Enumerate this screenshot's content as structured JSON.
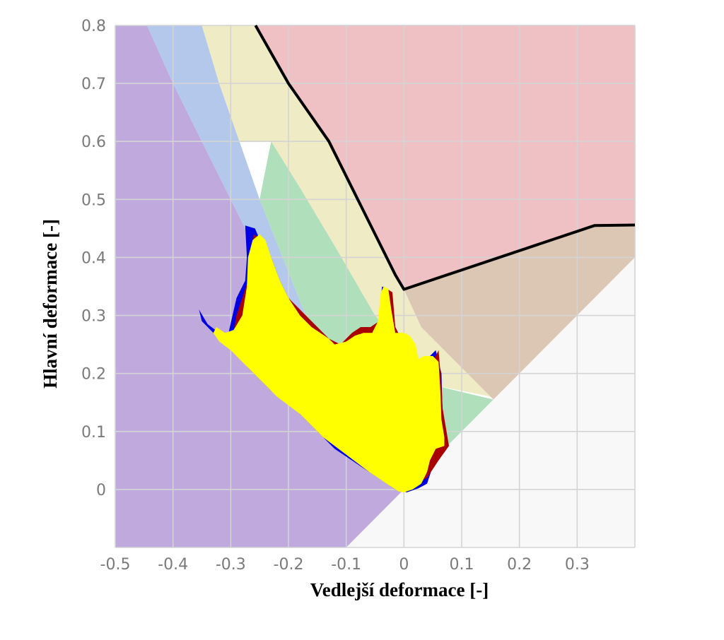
{
  "chart_data": {
    "type": "area",
    "title": "",
    "xlabel": "Vedlejší deformace [-]",
    "ylabel": "Hlavní deformace [-]",
    "xlim": [
      -0.5,
      0.4
    ],
    "ylim": [
      -0.1,
      0.8
    ],
    "x_ticks": [
      "-0.5",
      "-0.4",
      "-0.3",
      "-0.2",
      "-0.1",
      "0",
      "0.1",
      "0.2",
      "0.3"
    ],
    "y_ticks": [
      "0",
      "0.1",
      "0.2",
      "0.3",
      "0.4",
      "0.5",
      "0.6",
      "0.7",
      "0.8"
    ],
    "grid": true,
    "colors": {
      "purple": "#bfa9dd",
      "blue": "#b3c8ea",
      "cream": "#efebc4",
      "green": "#b0dfbb",
      "pink": "#efc1c4",
      "tan": "#dcc6b4",
      "white": "#f9f8f8",
      "limit_curve": "#000000",
      "strain_blue": "#0000e0",
      "strain_red": "#a80000",
      "strain_yellow": "#ffff00"
    },
    "regions": [
      {
        "name": "purple",
        "points": [
          [
            -0.5,
            -0.1
          ],
          [
            -0.5,
            0.8
          ],
          [
            -0.445,
            0.8
          ],
          [
            -0.4,
            0.7
          ],
          [
            -0.35,
            0.6
          ],
          [
            -0.3,
            0.5
          ],
          [
            -0.25,
            0.4
          ],
          [
            -0.2,
            0.3
          ],
          [
            -0.15,
            0.2
          ],
          [
            -0.1,
            0.1
          ],
          [
            0,
            0
          ],
          [
            -0.1,
            -0.1
          ]
        ]
      },
      {
        "name": "blue",
        "points": [
          [
            -0.445,
            0.8
          ],
          [
            -0.35,
            0.8
          ],
          [
            -0.32,
            0.7
          ],
          [
            -0.285,
            0.6
          ],
          [
            -0.25,
            0.5
          ],
          [
            -0.21,
            0.4
          ],
          [
            -0.17,
            0.3
          ],
          [
            -0.12,
            0.2
          ],
          [
            -0.06,
            0.1
          ],
          [
            0,
            0
          ],
          [
            -0.1,
            0.1
          ],
          [
            -0.15,
            0.2
          ],
          [
            -0.2,
            0.3
          ],
          [
            -0.25,
            0.4
          ],
          [
            -0.3,
            0.5
          ],
          [
            -0.35,
            0.6
          ],
          [
            -0.4,
            0.7
          ]
        ]
      },
      {
        "name": "cream",
        "points": [
          [
            -0.35,
            0.8
          ],
          [
            -0.25,
            0.8
          ],
          [
            -0.2,
            0.7
          ],
          [
            -0.13,
            0.6
          ],
          [
            -0.08,
            0.5
          ],
          [
            -0.04,
            0.42
          ],
          [
            0,
            0.345
          ],
          [
            0.03,
            0.28
          ],
          [
            0.15,
            0.16
          ],
          [
            0.05,
            0.18
          ],
          [
            -0.05,
            0.3
          ],
          [
            -0.12,
            0.42
          ],
          [
            -0.18,
            0.52
          ],
          [
            -0.23,
            0.6
          ],
          [
            -0.285,
            0.6
          ],
          [
            -0.32,
            0.7
          ]
        ]
      },
      {
        "name": "green",
        "points": [
          [
            -0.23,
            0.6
          ],
          [
            -0.18,
            0.52
          ],
          [
            -0.12,
            0.42
          ],
          [
            -0.05,
            0.3
          ],
          [
            0.05,
            0.18
          ],
          [
            0.155,
            0.155
          ],
          [
            0.075,
            0.075
          ],
          [
            0,
            0
          ],
          [
            -0.06,
            0.1
          ],
          [
            -0.12,
            0.2
          ],
          [
            -0.17,
            0.3
          ],
          [
            -0.21,
            0.4
          ],
          [
            -0.25,
            0.5
          ]
        ]
      },
      {
        "name": "pink",
        "points": [
          [
            -0.257,
            0.8
          ],
          [
            0.4,
            0.8
          ],
          [
            0.4,
            0.456
          ],
          [
            0.33,
            0.455
          ],
          [
            0,
            0.345
          ],
          [
            -0.04,
            0.42
          ],
          [
            -0.08,
            0.5
          ],
          [
            -0.13,
            0.6
          ],
          [
            -0.2,
            0.7
          ]
        ]
      },
      {
        "name": "tan",
        "points": [
          [
            0,
            0.345
          ],
          [
            0.33,
            0.455
          ],
          [
            0.4,
            0.456
          ],
          [
            0.4,
            0.4
          ],
          [
            0.155,
            0.155
          ],
          [
            0.03,
            0.28
          ]
        ]
      },
      {
        "name": "white",
        "points": [
          [
            -0.1,
            -0.1
          ],
          [
            0.4,
            -0.1
          ],
          [
            0.4,
            0.4
          ],
          [
            0,
            0
          ]
        ]
      }
    ],
    "limit_curve": [
      [
        -0.257,
        0.8
      ],
      [
        -0.2,
        0.7
      ],
      [
        -0.13,
        0.6
      ],
      [
        -0.08,
        0.5
      ],
      [
        -0.04,
        0.42
      ],
      [
        -0.015,
        0.37
      ],
      [
        0,
        0.345
      ],
      [
        0.33,
        0.455
      ],
      [
        0.4,
        0.456
      ]
    ],
    "strain_points": {
      "blue": [
        [
          -0.355,
          0.31
        ],
        [
          -0.34,
          0.285
        ],
        [
          -0.32,
          0.27
        ],
        [
          -0.305,
          0.265
        ],
        [
          -0.29,
          0.33
        ],
        [
          -0.275,
          0.36
        ],
        [
          -0.272,
          0.4
        ],
        [
          -0.275,
          0.455
        ],
        [
          -0.258,
          0.45
        ],
        [
          -0.245,
          0.42
        ],
        [
          -0.23,
          0.38
        ],
        [
          -0.22,
          0.35
        ],
        [
          -0.2,
          0.32
        ],
        [
          -0.18,
          0.3
        ],
        [
          -0.155,
          0.28
        ],
        [
          -0.13,
          0.26
        ],
        [
          -0.11,
          0.24
        ],
        [
          -0.095,
          0.25
        ],
        [
          -0.075,
          0.27
        ],
        [
          -0.058,
          0.27
        ],
        [
          -0.045,
          0.28
        ],
        [
          -0.038,
          0.35
        ],
        [
          -0.025,
          0.34
        ],
        [
          -0.015,
          0.28
        ],
        [
          0.005,
          0.24
        ],
        [
          0.02,
          0.225
        ],
        [
          0.035,
          0.22
        ],
        [
          0.055,
          0.24
        ],
        [
          0.065,
          0.2
        ],
        [
          0.067,
          0.13
        ],
        [
          0.075,
          0.075
        ],
        [
          0.065,
          0.06
        ],
        [
          0.05,
          0.04
        ],
        [
          0.04,
          0.01
        ],
        [
          0.025,
          0.002
        ],
        [
          0.005,
          -0.005
        ],
        [
          -0.015,
          0
        ],
        [
          -0.06,
          0.03
        ],
        [
          -0.12,
          0.07
        ],
        [
          -0.18,
          0.13
        ],
        [
          -0.23,
          0.17
        ],
        [
          -0.27,
          0.21
        ],
        [
          -0.305,
          0.25
        ],
        [
          -0.33,
          0.27
        ],
        [
          -0.35,
          0.29
        ]
      ],
      "red": [
        [
          -0.26,
          0.44
        ],
        [
          -0.245,
          0.43
        ],
        [
          -0.23,
          0.4
        ],
        [
          -0.215,
          0.36
        ],
        [
          -0.2,
          0.33
        ],
        [
          -0.18,
          0.31
        ],
        [
          -0.16,
          0.29
        ],
        [
          -0.13,
          0.26
        ],
        [
          -0.11,
          0.25
        ],
        [
          -0.09,
          0.27
        ],
        [
          -0.075,
          0.28
        ],
        [
          -0.058,
          0.28
        ],
        [
          -0.043,
          0.29
        ],
        [
          -0.036,
          0.35
        ],
        [
          -0.02,
          0.34
        ],
        [
          -0.015,
          0.28
        ],
        [
          0.005,
          0.24
        ],
        [
          0.02,
          0.22
        ],
        [
          0.04,
          0.2
        ],
        [
          0.06,
          0.24
        ],
        [
          0.065,
          0.18
        ],
        [
          0.067,
          0.14
        ],
        [
          0.078,
          0.075
        ],
        [
          0.06,
          0.05
        ],
        [
          0.04,
          0.02
        ],
        [
          0.02,
          0.01
        ],
        [
          0,
          0.02
        ],
        [
          -0.05,
          0.05
        ],
        [
          -0.12,
          0.1
        ],
        [
          -0.2,
          0.17
        ],
        [
          -0.26,
          0.21
        ],
        [
          -0.3,
          0.24
        ],
        [
          -0.29,
          0.3
        ],
        [
          -0.27,
          0.36
        ]
      ],
      "yellow": [
        [
          -0.33,
          0.27
        ],
        [
          -0.325,
          0.28
        ],
        [
          -0.31,
          0.27
        ],
        [
          -0.295,
          0.275
        ],
        [
          -0.28,
          0.3
        ],
        [
          -0.272,
          0.35
        ],
        [
          -0.27,
          0.4
        ],
        [
          -0.262,
          0.43
        ],
        [
          -0.25,
          0.44
        ],
        [
          -0.24,
          0.43
        ],
        [
          -0.23,
          0.4
        ],
        [
          -0.215,
          0.36
        ],
        [
          -0.2,
          0.33
        ],
        [
          -0.18,
          0.3
        ],
        [
          -0.16,
          0.28
        ],
        [
          -0.13,
          0.26
        ],
        [
          -0.12,
          0.25
        ],
        [
          -0.1,
          0.255
        ],
        [
          -0.085,
          0.265
        ],
        [
          -0.07,
          0.27
        ],
        [
          -0.055,
          0.27
        ],
        [
          -0.045,
          0.29
        ],
        [
          -0.04,
          0.34
        ],
        [
          -0.035,
          0.35
        ],
        [
          -0.027,
          0.345
        ],
        [
          -0.022,
          0.31
        ],
        [
          -0.015,
          0.27
        ],
        [
          0,
          0.27
        ],
        [
          0.01,
          0.265
        ],
        [
          0.02,
          0.25
        ],
        [
          0.025,
          0.225
        ],
        [
          0.035,
          0.23
        ],
        [
          0.05,
          0.23
        ],
        [
          0.06,
          0.22
        ],
        [
          0.063,
          0.17
        ],
        [
          0.065,
          0.12
        ],
        [
          0.07,
          0.09
        ],
        [
          0.07,
          0.075
        ],
        [
          0.055,
          0.07
        ],
        [
          0.045,
          0.05
        ],
        [
          0.04,
          0.03
        ],
        [
          0.03,
          0.01
        ],
        [
          0.015,
          0
        ],
        [
          0,
          -0.005
        ],
        [
          -0.01,
          -0.003
        ],
        [
          -0.03,
          0.01
        ],
        [
          -0.06,
          0.03
        ],
        [
          -0.1,
          0.06
        ],
        [
          -0.14,
          0.09
        ],
        [
          -0.18,
          0.13
        ],
        [
          -0.22,
          0.16
        ],
        [
          -0.26,
          0.2
        ],
        [
          -0.3,
          0.24
        ],
        [
          -0.32,
          0.255
        ]
      ]
    }
  }
}
